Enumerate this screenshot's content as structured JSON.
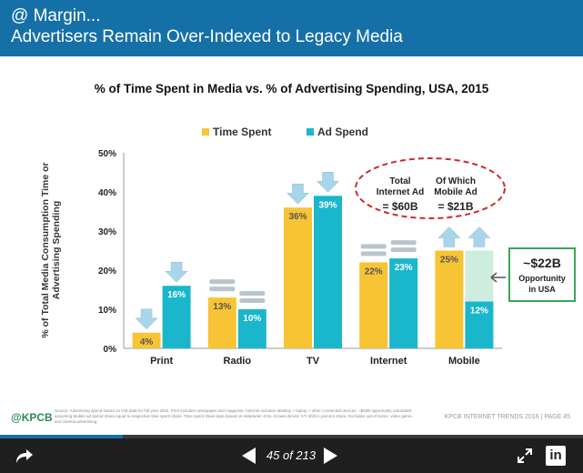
{
  "header": {
    "line1": "@ Margin...",
    "line2": "Advertisers Remain Over-Indexed to Legacy Media"
  },
  "footer": {
    "logo": "@KPCB",
    "source": "Source: Advertising spend based on IAB data for full year 2015. Print includes newspaper and magazine. Internet includes desktop + laptop + other connected devices. ~$22B opportunity calculated assuming Mobile ad spend share equal to respective time spent share. Time spent share data based on eMarketer 4/15. Arrows denote Y/Y shift in percent share. Excludes out-of-home, video game, and cinema advertising.",
    "right": "KPCB INTERNET TRENDS 2016  |  PAGE 45"
  },
  "toolbar": {
    "page": "45 of 213",
    "progress": 0.211
  },
  "colors": {
    "time": "#f7c435",
    "ad": "#1ab6cc",
    "opportunity": "#cdeede",
    "arrow": "#a9d5ea",
    "grey_arrow": "#b9c4cc",
    "header": "#1670a8"
  },
  "chart_data": {
    "type": "bar",
    "title": "% of Time Spent in Media vs. % of Advertising Spending, USA, 2015",
    "ylabel": "% of Total Media Consumption Time or Advertising Spending",
    "xlabel": "",
    "categories": [
      "Print",
      "Radio",
      "TV",
      "Internet",
      "Mobile"
    ],
    "series": [
      {
        "name": "Time Spent",
        "values": [
          4,
          13,
          36,
          22,
          25
        ],
        "labels": [
          "4%",
          "13%",
          "36%",
          "22%",
          "25%"
        ]
      },
      {
        "name": "Ad Spend",
        "values": [
          16,
          10,
          39,
          23,
          12
        ],
        "labels": [
          "16%",
          "10%",
          "39%",
          "23%",
          "12%"
        ]
      }
    ],
    "ylim": [
      0,
      50
    ],
    "yticks": [
      "0%",
      "10%",
      "20%",
      "30%",
      "40%",
      "50%"
    ],
    "legend": "top-center",
    "grid": false,
    "arrows": [
      {
        "category": "Print",
        "series": "Time Spent",
        "direction": "down"
      },
      {
        "category": "Print",
        "series": "Ad Spend",
        "direction": "down"
      },
      {
        "category": "Radio",
        "series": "Time Spent",
        "direction": "flat"
      },
      {
        "category": "Radio",
        "series": "Ad Spend",
        "direction": "flat"
      },
      {
        "category": "TV",
        "series": "Time Spent",
        "direction": "down"
      },
      {
        "category": "TV",
        "series": "Ad Spend",
        "direction": "down"
      },
      {
        "category": "Internet",
        "series": "Time Spent",
        "direction": "flat"
      },
      {
        "category": "Internet",
        "series": "Ad Spend",
        "direction": "flat"
      },
      {
        "category": "Mobile",
        "series": "Time Spent",
        "direction": "up"
      },
      {
        "category": "Mobile",
        "series": "Ad Spend",
        "direction": "up"
      }
    ],
    "annotations": {
      "internet_ad_label": [
        "Total",
        "Internet Ad"
      ],
      "internet_ad_value": "= $60B",
      "mobile_ad_label": [
        "Of Which",
        "Mobile Ad"
      ],
      "mobile_ad_value": "= $21B",
      "opportunity_value": "~$22B",
      "opportunity_label": [
        "Opportunity",
        "in USA"
      ]
    }
  }
}
